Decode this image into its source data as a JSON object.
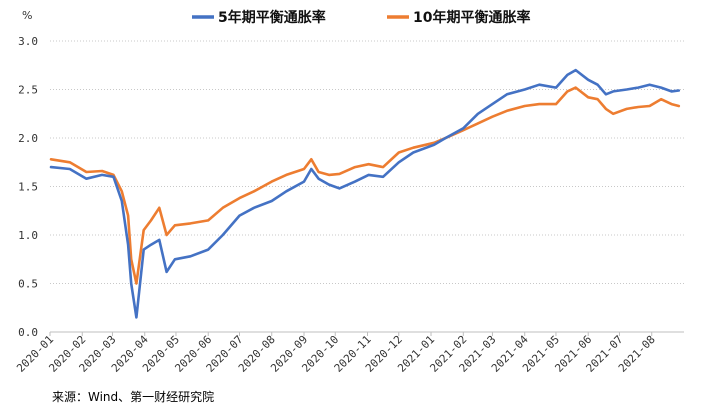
{
  "chart_data": {
    "type": "line",
    "title": "",
    "unit_label": "%",
    "xlabel": "",
    "ylabel": "",
    "ylim": [
      0.0,
      3.0
    ],
    "y_ticks": [
      "0.0",
      "0.5",
      "1.0",
      "1.5",
      "2.0",
      "2.5",
      "3.0"
    ],
    "grid": "horizontal-dotted",
    "legend_position": "top-center",
    "x_categories": [
      "2020-01",
      "2020-02",
      "2020-03",
      "2020-04",
      "2020-05",
      "2020-06",
      "2020-07",
      "2020-08",
      "2020-09",
      "2020-10",
      "2020-11",
      "2020-12",
      "2021-01",
      "2021-02",
      "2021-03",
      "2021-04",
      "2021-05",
      "2021-06",
      "2021-07",
      "2021-08"
    ],
    "series": [
      {
        "name": "5年期平衡通胀率",
        "color": "#4472C4",
        "x": [
          "2020-01-02",
          "2020-01-20",
          "2020-02-05",
          "2020-02-20",
          "2020-03-02",
          "2020-03-10",
          "2020-03-16",
          "2020-03-19",
          "2020-03-24",
          "2020-03-31",
          "2020-04-07",
          "2020-04-15",
          "2020-04-22",
          "2020-04-30",
          "2020-05-15",
          "2020-06-01",
          "2020-06-15",
          "2020-07-01",
          "2020-07-15",
          "2020-08-01",
          "2020-08-15",
          "2020-09-01",
          "2020-09-08",
          "2020-09-15",
          "2020-09-25",
          "2020-10-05",
          "2020-10-20",
          "2020-11-02",
          "2020-11-16",
          "2020-12-01",
          "2020-12-15",
          "2021-01-04",
          "2021-01-15",
          "2021-02-01",
          "2021-02-15",
          "2021-03-01",
          "2021-03-15",
          "2021-04-01",
          "2021-04-15",
          "2021-05-01",
          "2021-05-12",
          "2021-05-20",
          "2021-06-01",
          "2021-06-10",
          "2021-06-18",
          "2021-06-25",
          "2021-07-08",
          "2021-07-19",
          "2021-07-30",
          "2021-08-10",
          "2021-08-20",
          "2021-08-27"
        ],
        "values": [
          1.7,
          1.68,
          1.58,
          1.62,
          1.6,
          1.35,
          0.9,
          0.5,
          0.15,
          0.85,
          0.9,
          0.95,
          0.62,
          0.75,
          0.78,
          0.85,
          1.0,
          1.2,
          1.28,
          1.35,
          1.45,
          1.55,
          1.68,
          1.58,
          1.52,
          1.48,
          1.55,
          1.62,
          1.6,
          1.75,
          1.85,
          1.93,
          2.0,
          2.1,
          2.25,
          2.35,
          2.45,
          2.5,
          2.55,
          2.52,
          2.65,
          2.7,
          2.6,
          2.55,
          2.45,
          2.48,
          2.5,
          2.52,
          2.55,
          2.52,
          2.48,
          2.49
        ]
      },
      {
        "name": "10年期平衡通胀率",
        "color": "#ED7D31",
        "x": [
          "2020-01-02",
          "2020-01-20",
          "2020-02-05",
          "2020-02-20",
          "2020-03-02",
          "2020-03-10",
          "2020-03-16",
          "2020-03-19",
          "2020-03-24",
          "2020-03-31",
          "2020-04-07",
          "2020-04-15",
          "2020-04-22",
          "2020-04-30",
          "2020-05-15",
          "2020-06-01",
          "2020-06-15",
          "2020-07-01",
          "2020-07-15",
          "2020-08-01",
          "2020-08-15",
          "2020-09-01",
          "2020-09-08",
          "2020-09-15",
          "2020-09-25",
          "2020-10-05",
          "2020-10-20",
          "2020-11-02",
          "2020-11-16",
          "2020-12-01",
          "2020-12-15",
          "2021-01-04",
          "2021-01-15",
          "2021-02-01",
          "2021-02-15",
          "2021-03-01",
          "2021-03-15",
          "2021-04-01",
          "2021-04-15",
          "2021-05-01",
          "2021-05-12",
          "2021-05-20",
          "2021-06-01",
          "2021-06-10",
          "2021-06-18",
          "2021-06-25",
          "2021-07-08",
          "2021-07-19",
          "2021-07-30",
          "2021-08-10",
          "2021-08-20",
          "2021-08-27"
        ],
        "values": [
          1.78,
          1.75,
          1.65,
          1.66,
          1.62,
          1.45,
          1.2,
          0.75,
          0.5,
          1.05,
          1.15,
          1.28,
          1.0,
          1.1,
          1.12,
          1.15,
          1.28,
          1.38,
          1.45,
          1.55,
          1.62,
          1.68,
          1.78,
          1.65,
          1.62,
          1.63,
          1.7,
          1.73,
          1.7,
          1.85,
          1.9,
          1.95,
          2.0,
          2.08,
          2.15,
          2.22,
          2.28,
          2.33,
          2.35,
          2.35,
          2.48,
          2.52,
          2.42,
          2.4,
          2.3,
          2.25,
          2.3,
          2.32,
          2.33,
          2.4,
          2.35,
          2.33
        ]
      }
    ]
  },
  "source_text": "来源：Wind、第一财经研究院"
}
